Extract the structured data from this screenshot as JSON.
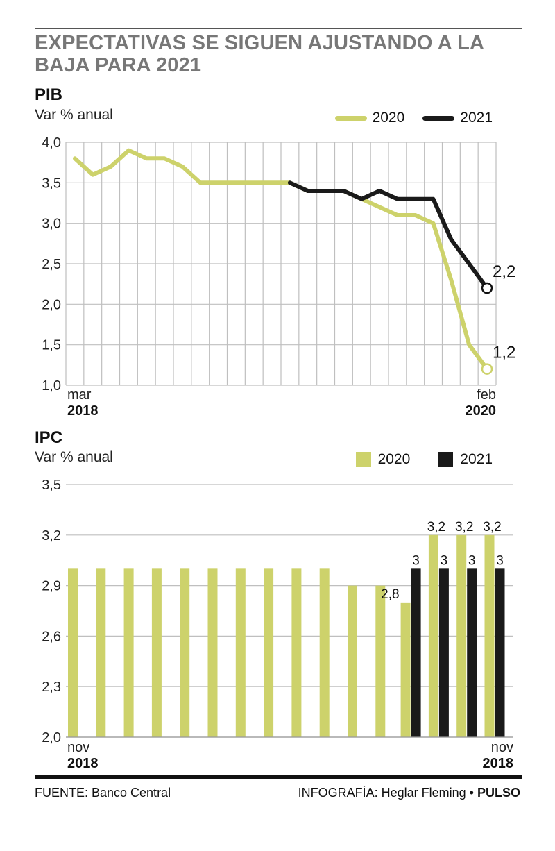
{
  "headline": "EXPECTATIVAS SE SIGUEN AJUSTANDO A LA BAJA PARA 2021",
  "colors": {
    "series_2020": "#cdd26b",
    "series_2021": "#1a1a1a",
    "grid": "#bfbfbf",
    "headline": "#777777"
  },
  "chart_data": [
    {
      "type": "line",
      "title": "PIB",
      "ylabel": "Var % anual",
      "ylim": [
        1.0,
        4.0
      ],
      "yticks": [
        "4,0",
        "3,5",
        "3,0",
        "2,5",
        "2,0",
        "1,5",
        "1,0"
      ],
      "x_start": {
        "month": "mar",
        "year": "2018"
      },
      "x_end": {
        "month": "feb",
        "year": "2020"
      },
      "grid": true,
      "legend": "top-right",
      "series": [
        {
          "name": "2020",
          "x": [
            0,
            1,
            2,
            3,
            4,
            5,
            6,
            7,
            8,
            9,
            10,
            11,
            12,
            13,
            14,
            15,
            16,
            17,
            18,
            19,
            20,
            21,
            22,
            23
          ],
          "values": [
            3.8,
            3.6,
            3.7,
            3.9,
            3.8,
            3.8,
            3.7,
            3.5,
            3.5,
            3.5,
            3.5,
            3.5,
            3.5,
            3.4,
            3.4,
            3.4,
            3.3,
            3.2,
            3.1,
            3.1,
            3.0,
            2.3,
            1.5,
            1.2
          ]
        },
        {
          "name": "2021",
          "x": [
            12,
            13,
            14,
            15,
            16,
            17,
            18,
            19,
            20,
            21,
            22,
            23
          ],
          "values": [
            3.5,
            3.4,
            3.4,
            3.4,
            3.3,
            3.4,
            3.3,
            3.3,
            3.3,
            2.8,
            2.5,
            2.2
          ]
        }
      ],
      "end_labels": [
        {
          "series": "2021",
          "text": "2,2"
        },
        {
          "series": "2020",
          "text": "1,2"
        }
      ]
    },
    {
      "type": "bar",
      "title": "IPC",
      "ylabel": "Var % anual",
      "ylim": [
        2.0,
        3.5
      ],
      "yticks": [
        "3,5",
        "3,2",
        "2,9",
        "2,6",
        "2,3",
        "2,0"
      ],
      "x_start": {
        "month": "nov",
        "year": "2018"
      },
      "x_end": {
        "month": "nov",
        "year": "2018"
      },
      "grid": true,
      "legend": "top-right",
      "series": [
        {
          "name": "2020",
          "values": [
            3.0,
            3.0,
            3.0,
            3.0,
            3.0,
            3.0,
            3.0,
            3.0,
            3.0,
            3.0,
            2.9,
            2.9,
            2.8,
            3.2,
            3.2,
            3.2
          ]
        },
        {
          "name": "2021",
          "values": [
            null,
            null,
            null,
            null,
            null,
            null,
            null,
            null,
            null,
            null,
            null,
            null,
            3.0,
            3.0,
            3.0,
            3.0
          ]
        }
      ],
      "data_labels": {
        "2020": [
          "",
          "",
          "",
          "",
          "",
          "",
          "",
          "",
          "",
          "",
          "",
          "",
          "2,8",
          "3,2",
          "3,2",
          "3,2"
        ],
        "2021": [
          "",
          "",
          "",
          "",
          "",
          "",
          "",
          "",
          "",
          "",
          "",
          "",
          "3",
          "3",
          "3",
          "3"
        ]
      }
    }
  ],
  "footer": {
    "source": "FUENTE: Banco Central",
    "credit": "INFOGRAFÍA: Heglar Fleming",
    "separator": "•",
    "brand": "PULSO"
  }
}
